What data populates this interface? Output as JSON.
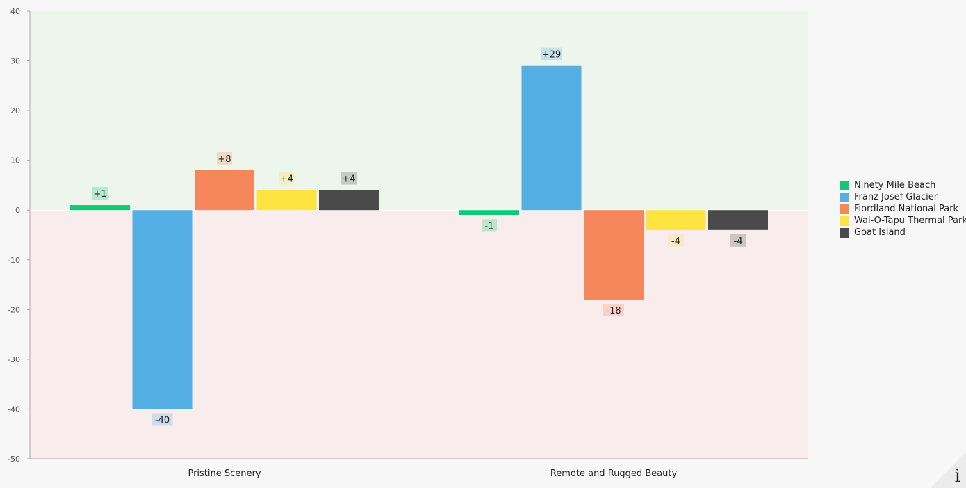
{
  "chart_data": {
    "type": "bar",
    "categories": [
      "Pristine Scenery",
      "Remote and Rugged Beauty"
    ],
    "series": [
      {
        "name": "Ninety Mile Beach",
        "values": [
          1,
          -1
        ],
        "labels": [
          "+1",
          "-1"
        ],
        "color": "#0ccb77"
      },
      {
        "name": "Franz Josef Glacier",
        "values": [
          -40,
          29
        ],
        "labels": [
          "-40",
          "+29"
        ],
        "color": "#54b0e4"
      },
      {
        "name": "Fiordland National Park",
        "values": [
          8,
          -18
        ],
        "labels": [
          "+8",
          "-18"
        ],
        "color": "#f6875c"
      },
      {
        "name": "Wai-O-Tapu Thermal Park",
        "values": [
          4,
          -4
        ],
        "labels": [
          "+4",
          "-4"
        ],
        "color": "#fee441"
      },
      {
        "name": "Goat Island",
        "values": [
          4,
          -4
        ],
        "labels": [
          "+4",
          "-4"
        ],
        "color": "#4a4a4a"
      }
    ],
    "ylim": [
      -50,
      40
    ],
    "yticks": [
      "40",
      "30",
      "20",
      "10",
      "0",
      "-10",
      "-20",
      "-30",
      "-40",
      "-50"
    ],
    "positive_region_color": "#edf5ec",
    "negative_region_color": "#f8ecec",
    "legend_position": "right"
  },
  "corner_button": {
    "glyph": "i",
    "icon": "info-icon"
  }
}
